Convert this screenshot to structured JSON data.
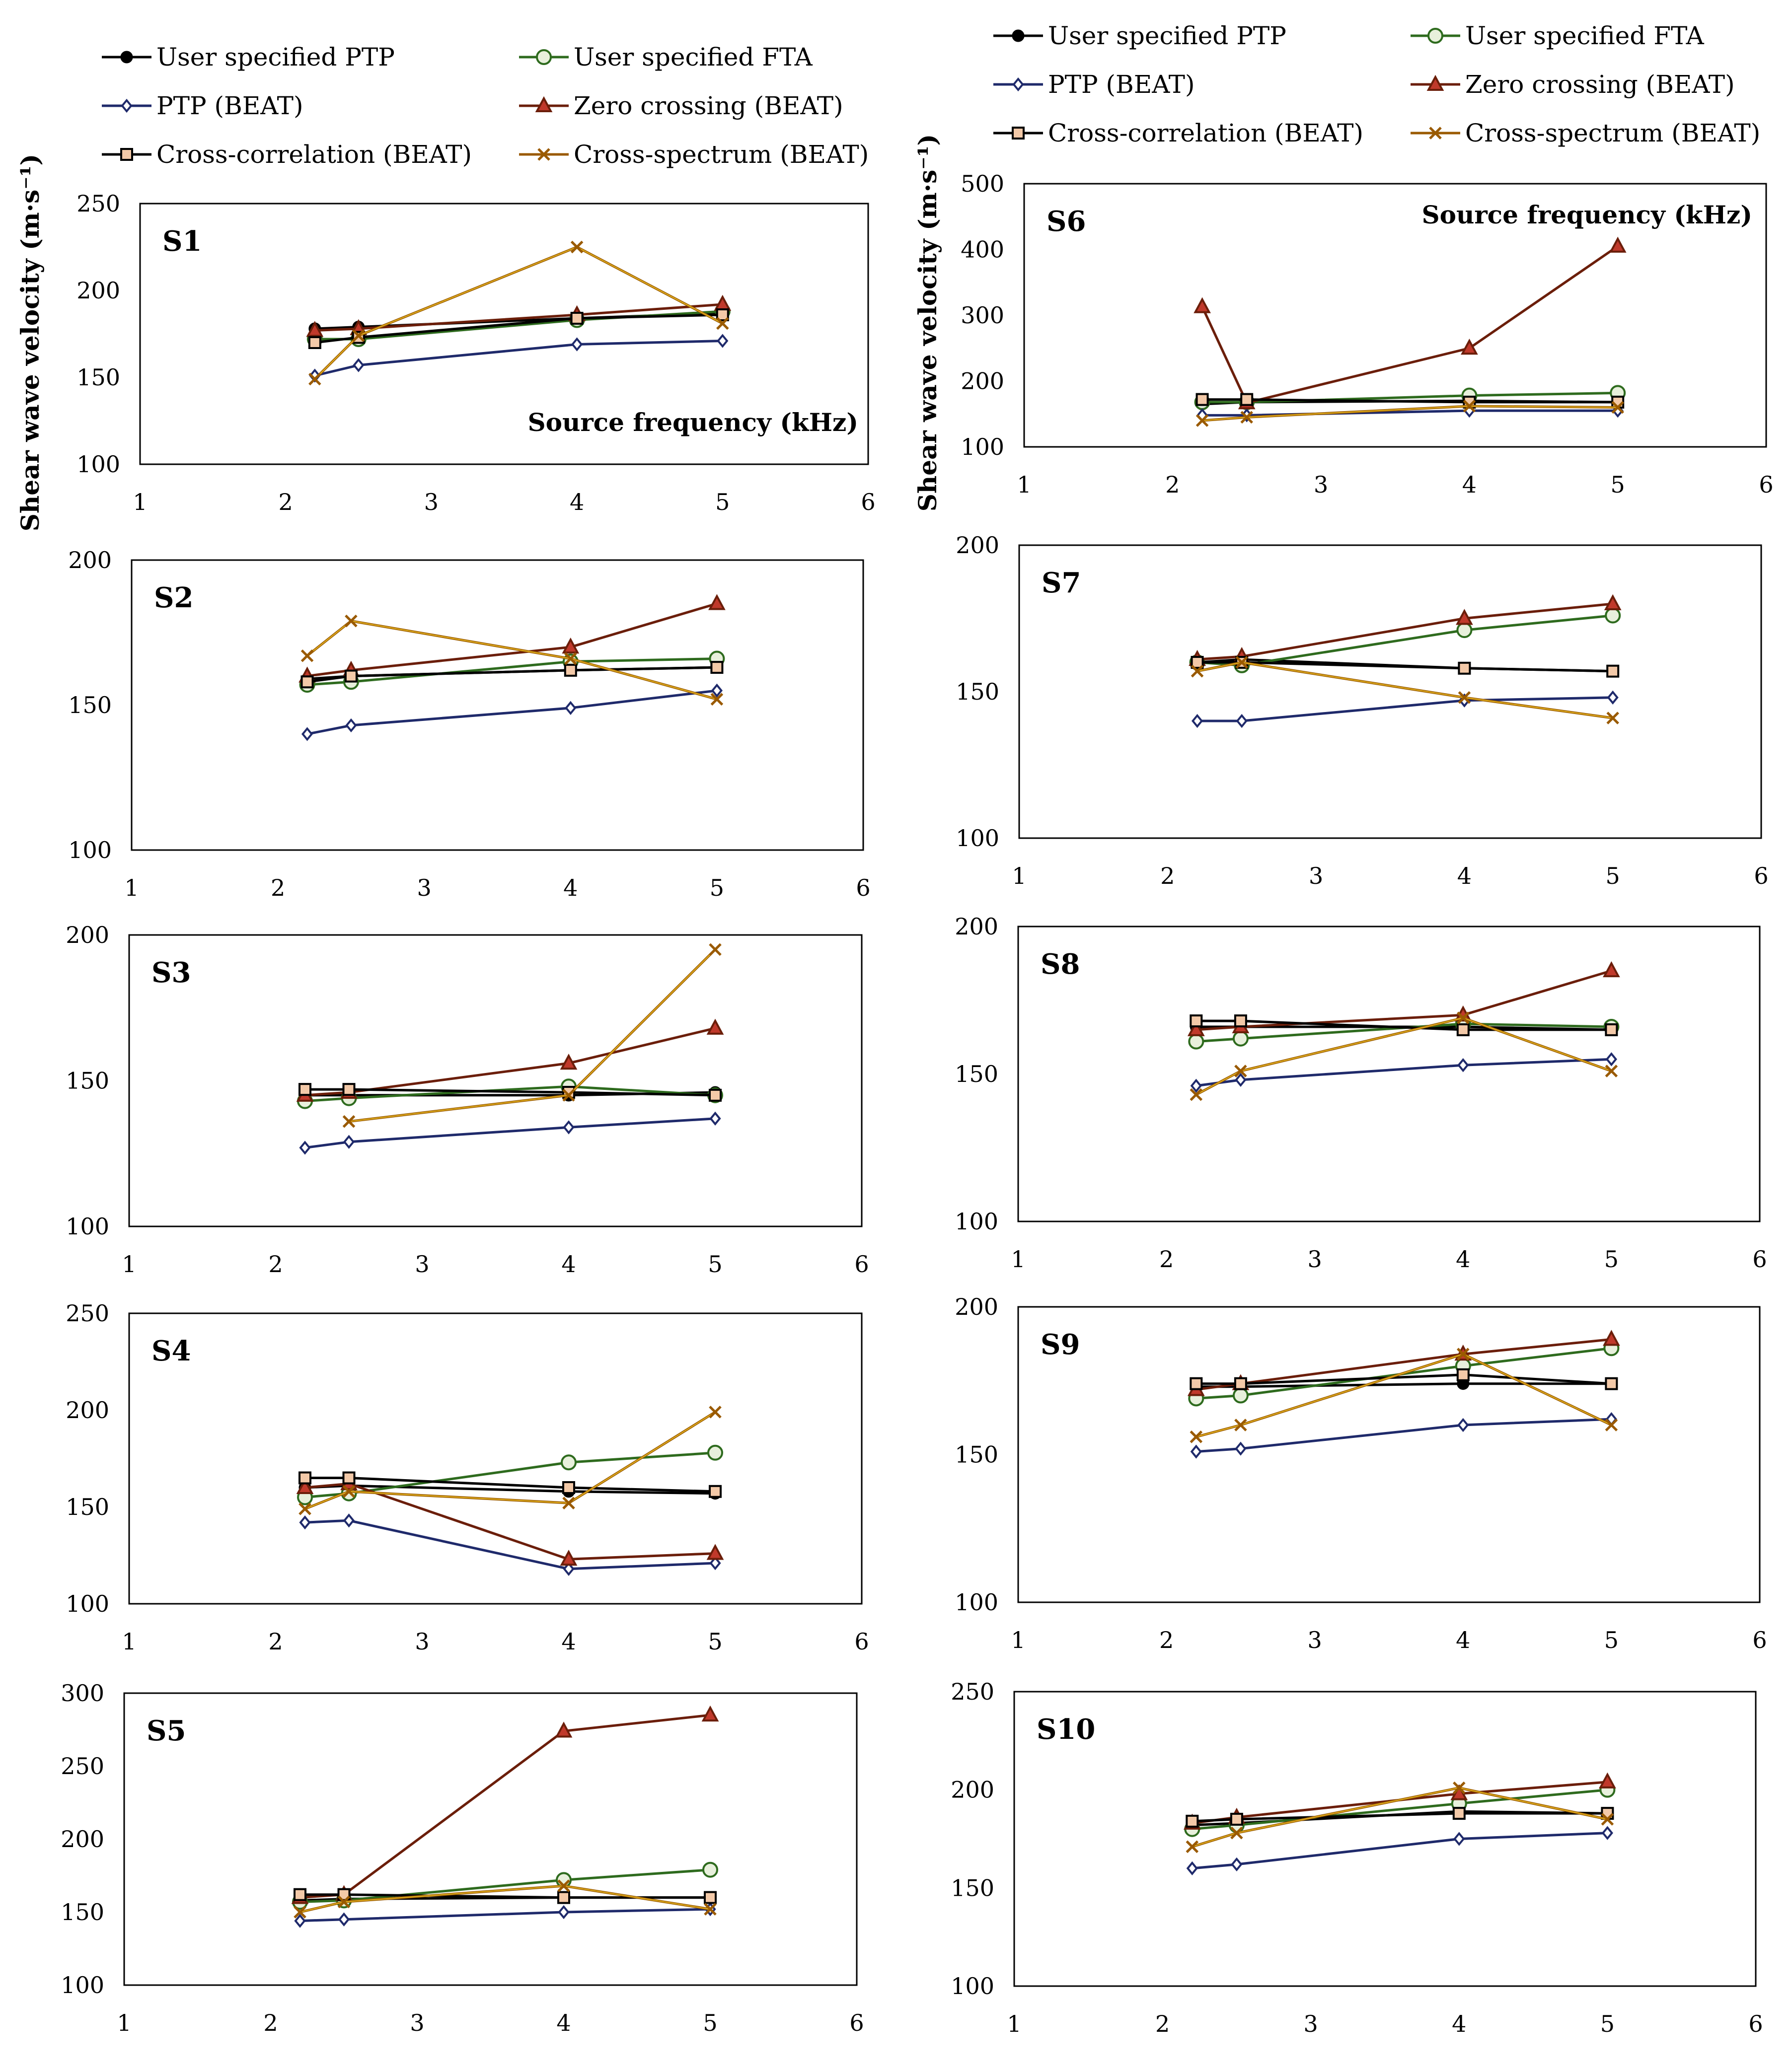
{
  "ylabel": "Shear wave velocity (m·s⁻¹)",
  "xlabel": "Source frequency (kHz)",
  "legend": [
    {
      "key": "ptp",
      "name": "User specified PTP",
      "color": "#000000",
      "marker": "filled-circle"
    },
    {
      "key": "fta",
      "name": "User specified FTA",
      "color": "#2e6b1e",
      "marker": "open-circle"
    },
    {
      "key": "ptpb",
      "name": "PTP (BEAT)",
      "color": "#1f2a6b",
      "marker": "open-diamond"
    },
    {
      "key": "zc",
      "name": "Zero crossing (BEAT)",
      "color": "#6b1e0a",
      "marker": "filled-triangle"
    },
    {
      "key": "cc",
      "name": "Cross-correlation (BEAT)",
      "color": "#000000",
      "marker": "open-square"
    },
    {
      "key": "cs",
      "name": "Cross-spectrum (BEAT)",
      "color": "#9a5a00",
      "marker": "x"
    }
  ],
  "marker_colors": {
    "zc_fill": "#c0392b",
    "cc_fill": "#f3c9a8",
    "fta_fill": "#e8f0dc",
    "cs_light": "#e0b020"
  },
  "chart_data": [
    {
      "label": "S1",
      "type": "line",
      "x": [
        2.2,
        2.5,
        4,
        5
      ],
      "xlim": [
        1,
        6
      ],
      "xticks": [
        1,
        2,
        3,
        4,
        5,
        6
      ],
      "ylim": [
        100,
        250
      ],
      "yticks": [
        100,
        150,
        200,
        250
      ],
      "grid": false,
      "series": [
        {
          "key": "ptp",
          "values": [
            178,
            179,
            184,
            187
          ]
        },
        {
          "key": "fta",
          "values": [
            172,
            172,
            183,
            188
          ]
        },
        {
          "key": "ptpb",
          "values": [
            151,
            157,
            169,
            171
          ]
        },
        {
          "key": "zc",
          "values": [
            177,
            178,
            186,
            192
          ]
        },
        {
          "key": "cc",
          "values": [
            170,
            173,
            184,
            186
          ]
        },
        {
          "key": "cs",
          "values": [
            149,
            174,
            225,
            181
          ]
        }
      ]
    },
    {
      "label": "S6",
      "type": "line",
      "x": [
        2.2,
        2.5,
        4,
        5
      ],
      "xlim": [
        1,
        6
      ],
      "xticks": [
        1,
        2,
        3,
        4,
        5,
        6
      ],
      "ylim": [
        100,
        500
      ],
      "yticks": [
        100,
        200,
        300,
        400,
        500
      ],
      "grid": false,
      "series": [
        {
          "key": "ptp",
          "values": [
            165,
            168,
            170,
            168
          ]
        },
        {
          "key": "fta",
          "values": [
            168,
            168,
            178,
            182
          ]
        },
        {
          "key": "ptpb",
          "values": [
            148,
            148,
            155,
            155
          ]
        },
        {
          "key": "zc",
          "values": [
            313,
            167,
            250,
            405
          ]
        },
        {
          "key": "cc",
          "values": [
            172,
            172,
            168,
            168
          ]
        },
        {
          "key": "cs",
          "values": [
            140,
            145,
            162,
            160
          ]
        }
      ]
    },
    {
      "label": "S2",
      "type": "line",
      "x": [
        2.2,
        2.5,
        4,
        5
      ],
      "xlim": [
        1,
        6
      ],
      "xticks": [
        1,
        2,
        3,
        4,
        5,
        6
      ],
      "ylim": [
        100,
        200
      ],
      "yticks": [
        100,
        150,
        200
      ],
      "grid": false,
      "series": [
        {
          "key": "ptp",
          "values": [
            159,
            160,
            162,
            163
          ]
        },
        {
          "key": "fta",
          "values": [
            157,
            158,
            165,
            166
          ]
        },
        {
          "key": "ptpb",
          "values": [
            140,
            143,
            149,
            155
          ]
        },
        {
          "key": "zc",
          "values": [
            160,
            162,
            170,
            185
          ]
        },
        {
          "key": "cc",
          "values": [
            158,
            160,
            162,
            163
          ]
        },
        {
          "key": "cs",
          "values": [
            167,
            179,
            166,
            152
          ]
        }
      ]
    },
    {
      "label": "S7",
      "type": "line",
      "x": [
        2.2,
        2.5,
        4,
        5
      ],
      "xlim": [
        1,
        6
      ],
      "xticks": [
        1,
        2,
        3,
        4,
        5,
        6
      ],
      "ylim": [
        100,
        200
      ],
      "yticks": [
        100,
        150,
        200
      ],
      "grid": false,
      "series": [
        {
          "key": "ptp",
          "values": [
            160,
            161,
            158,
            157
          ]
        },
        {
          "key": "fta",
          "values": [
            160,
            159,
            171,
            176
          ]
        },
        {
          "key": "ptpb",
          "values": [
            140,
            140,
            147,
            148
          ]
        },
        {
          "key": "zc",
          "values": [
            161,
            162,
            175,
            180
          ]
        },
        {
          "key": "cc",
          "values": [
            160,
            160,
            158,
            157
          ]
        },
        {
          "key": "cs",
          "values": [
            157,
            160,
            148,
            141
          ]
        }
      ]
    },
    {
      "label": "S3",
      "type": "line",
      "x": [
        2.2,
        2.5,
        4,
        5
      ],
      "xlim": [
        1,
        6
      ],
      "xticks": [
        1,
        2,
        3,
        4,
        5,
        6
      ],
      "ylim": [
        100,
        200
      ],
      "yticks": [
        100,
        150,
        200
      ],
      "grid": false,
      "series": [
        {
          "key": "ptp",
          "values": [
            145,
            145,
            145,
            146
          ]
        },
        {
          "key": "fta",
          "values": [
            143,
            144,
            148,
            145
          ]
        },
        {
          "key": "ptpb",
          "values": [
            127,
            129,
            134,
            137
          ]
        },
        {
          "key": "zc",
          "values": [
            145,
            146,
            156,
            168
          ]
        },
        {
          "key": "cc",
          "values": [
            147,
            147,
            146,
            145
          ]
        },
        {
          "key": "cs",
          "values": null,
          "values_partial": [
            [
              2.5,
              136
            ],
            [
              4,
              145
            ],
            [
              5,
              195
            ]
          ]
        }
      ]
    },
    {
      "label": "S8",
      "type": "line",
      "x": [
        2.2,
        2.5,
        4,
        5
      ],
      "xlim": [
        1,
        6
      ],
      "xticks": [
        1,
        2,
        3,
        4,
        5,
        6
      ],
      "ylim": [
        100,
        200
      ],
      "yticks": [
        100,
        150,
        200
      ],
      "grid": false,
      "series": [
        {
          "key": "ptp",
          "values": [
            166,
            166,
            166,
            165
          ]
        },
        {
          "key": "fta",
          "values": [
            161,
            162,
            167,
            166
          ]
        },
        {
          "key": "ptpb",
          "values": [
            146,
            148,
            153,
            155
          ]
        },
        {
          "key": "zc",
          "values": [
            165,
            166,
            170,
            185
          ]
        },
        {
          "key": "cc",
          "values": [
            168,
            168,
            165,
            165
          ]
        },
        {
          "key": "cs",
          "values": [
            143,
            151,
            169,
            151
          ]
        }
      ]
    },
    {
      "label": "S4",
      "type": "line",
      "x": [
        2.2,
        2.5,
        4,
        5
      ],
      "xlim": [
        1,
        6
      ],
      "xticks": [
        1,
        2,
        3,
        4,
        5,
        6
      ],
      "ylim": [
        100,
        250
      ],
      "yticks": [
        100,
        150,
        200,
        250
      ],
      "grid": false,
      "series": [
        {
          "key": "ptp",
          "values": [
            160,
            161,
            158,
            157
          ]
        },
        {
          "key": "fta",
          "values": [
            155,
            157,
            173,
            178
          ]
        },
        {
          "key": "ptpb",
          "values": [
            142,
            143,
            118,
            121
          ]
        },
        {
          "key": "zc",
          "values": [
            160,
            162,
            123,
            126
          ]
        },
        {
          "key": "cc",
          "values": [
            165,
            165,
            160,
            158
          ]
        },
        {
          "key": "cs",
          "values": [
            149,
            158,
            152,
            199
          ]
        }
      ]
    },
    {
      "label": "S9",
      "type": "line",
      "x": [
        2.2,
        2.5,
        4,
        5
      ],
      "xlim": [
        1,
        6
      ],
      "xticks": [
        1,
        2,
        3,
        4,
        5,
        6
      ],
      "ylim": [
        100,
        200
      ],
      "yticks": [
        100,
        150,
        200
      ],
      "grid": false,
      "series": [
        {
          "key": "ptp",
          "values": [
            173,
            173,
            174,
            174
          ]
        },
        {
          "key": "fta",
          "values": [
            169,
            170,
            180,
            186
          ]
        },
        {
          "key": "ptpb",
          "values": [
            151,
            152,
            160,
            162
          ]
        },
        {
          "key": "zc",
          "values": [
            172,
            174,
            184,
            189
          ]
        },
        {
          "key": "cc",
          "values": [
            174,
            174,
            177,
            174
          ]
        },
        {
          "key": "cs",
          "values": [
            156,
            160,
            184,
            160
          ]
        }
      ]
    },
    {
      "label": "S5",
      "type": "line",
      "x": [
        2.2,
        2.5,
        4,
        5
      ],
      "xlim": [
        1,
        6
      ],
      "xticks": [
        1,
        2,
        3,
        4,
        5,
        6
      ],
      "ylim": [
        100,
        300
      ],
      "yticks": [
        100,
        150,
        200,
        250,
        300
      ],
      "grid": false,
      "series": [
        {
          "key": "ptp",
          "values": [
            158,
            159,
            160,
            160
          ]
        },
        {
          "key": "fta",
          "values": [
            157,
            158,
            172,
            179
          ]
        },
        {
          "key": "ptpb",
          "values": [
            144,
            145,
            150,
            152
          ]
        },
        {
          "key": "zc",
          "values": [
            160,
            162,
            274,
            285
          ]
        },
        {
          "key": "cc",
          "values": [
            162,
            162,
            160,
            160
          ]
        },
        {
          "key": "cs",
          "values": [
            150,
            157,
            168,
            152
          ]
        }
      ]
    },
    {
      "label": "S10",
      "type": "line",
      "x": [
        2.2,
        2.5,
        4,
        5
      ],
      "xlim": [
        1,
        6
      ],
      "xticks": [
        1,
        2,
        3,
        4,
        5,
        6
      ],
      "ylim": [
        100,
        250
      ],
      "yticks": [
        100,
        150,
        200,
        250
      ],
      "grid": false,
      "series": [
        {
          "key": "ptp",
          "values": [
            182,
            183,
            189,
            188
          ]
        },
        {
          "key": "fta",
          "values": [
            180,
            182,
            193,
            200
          ]
        },
        {
          "key": "ptpb",
          "values": [
            160,
            162,
            175,
            178
          ]
        },
        {
          "key": "zc",
          "values": [
            183,
            186,
            198,
            204
          ]
        },
        {
          "key": "cc",
          "values": [
            184,
            185,
            188,
            188
          ]
        },
        {
          "key": "cs",
          "values": [
            171,
            178,
            201,
            185
          ]
        }
      ]
    }
  ]
}
